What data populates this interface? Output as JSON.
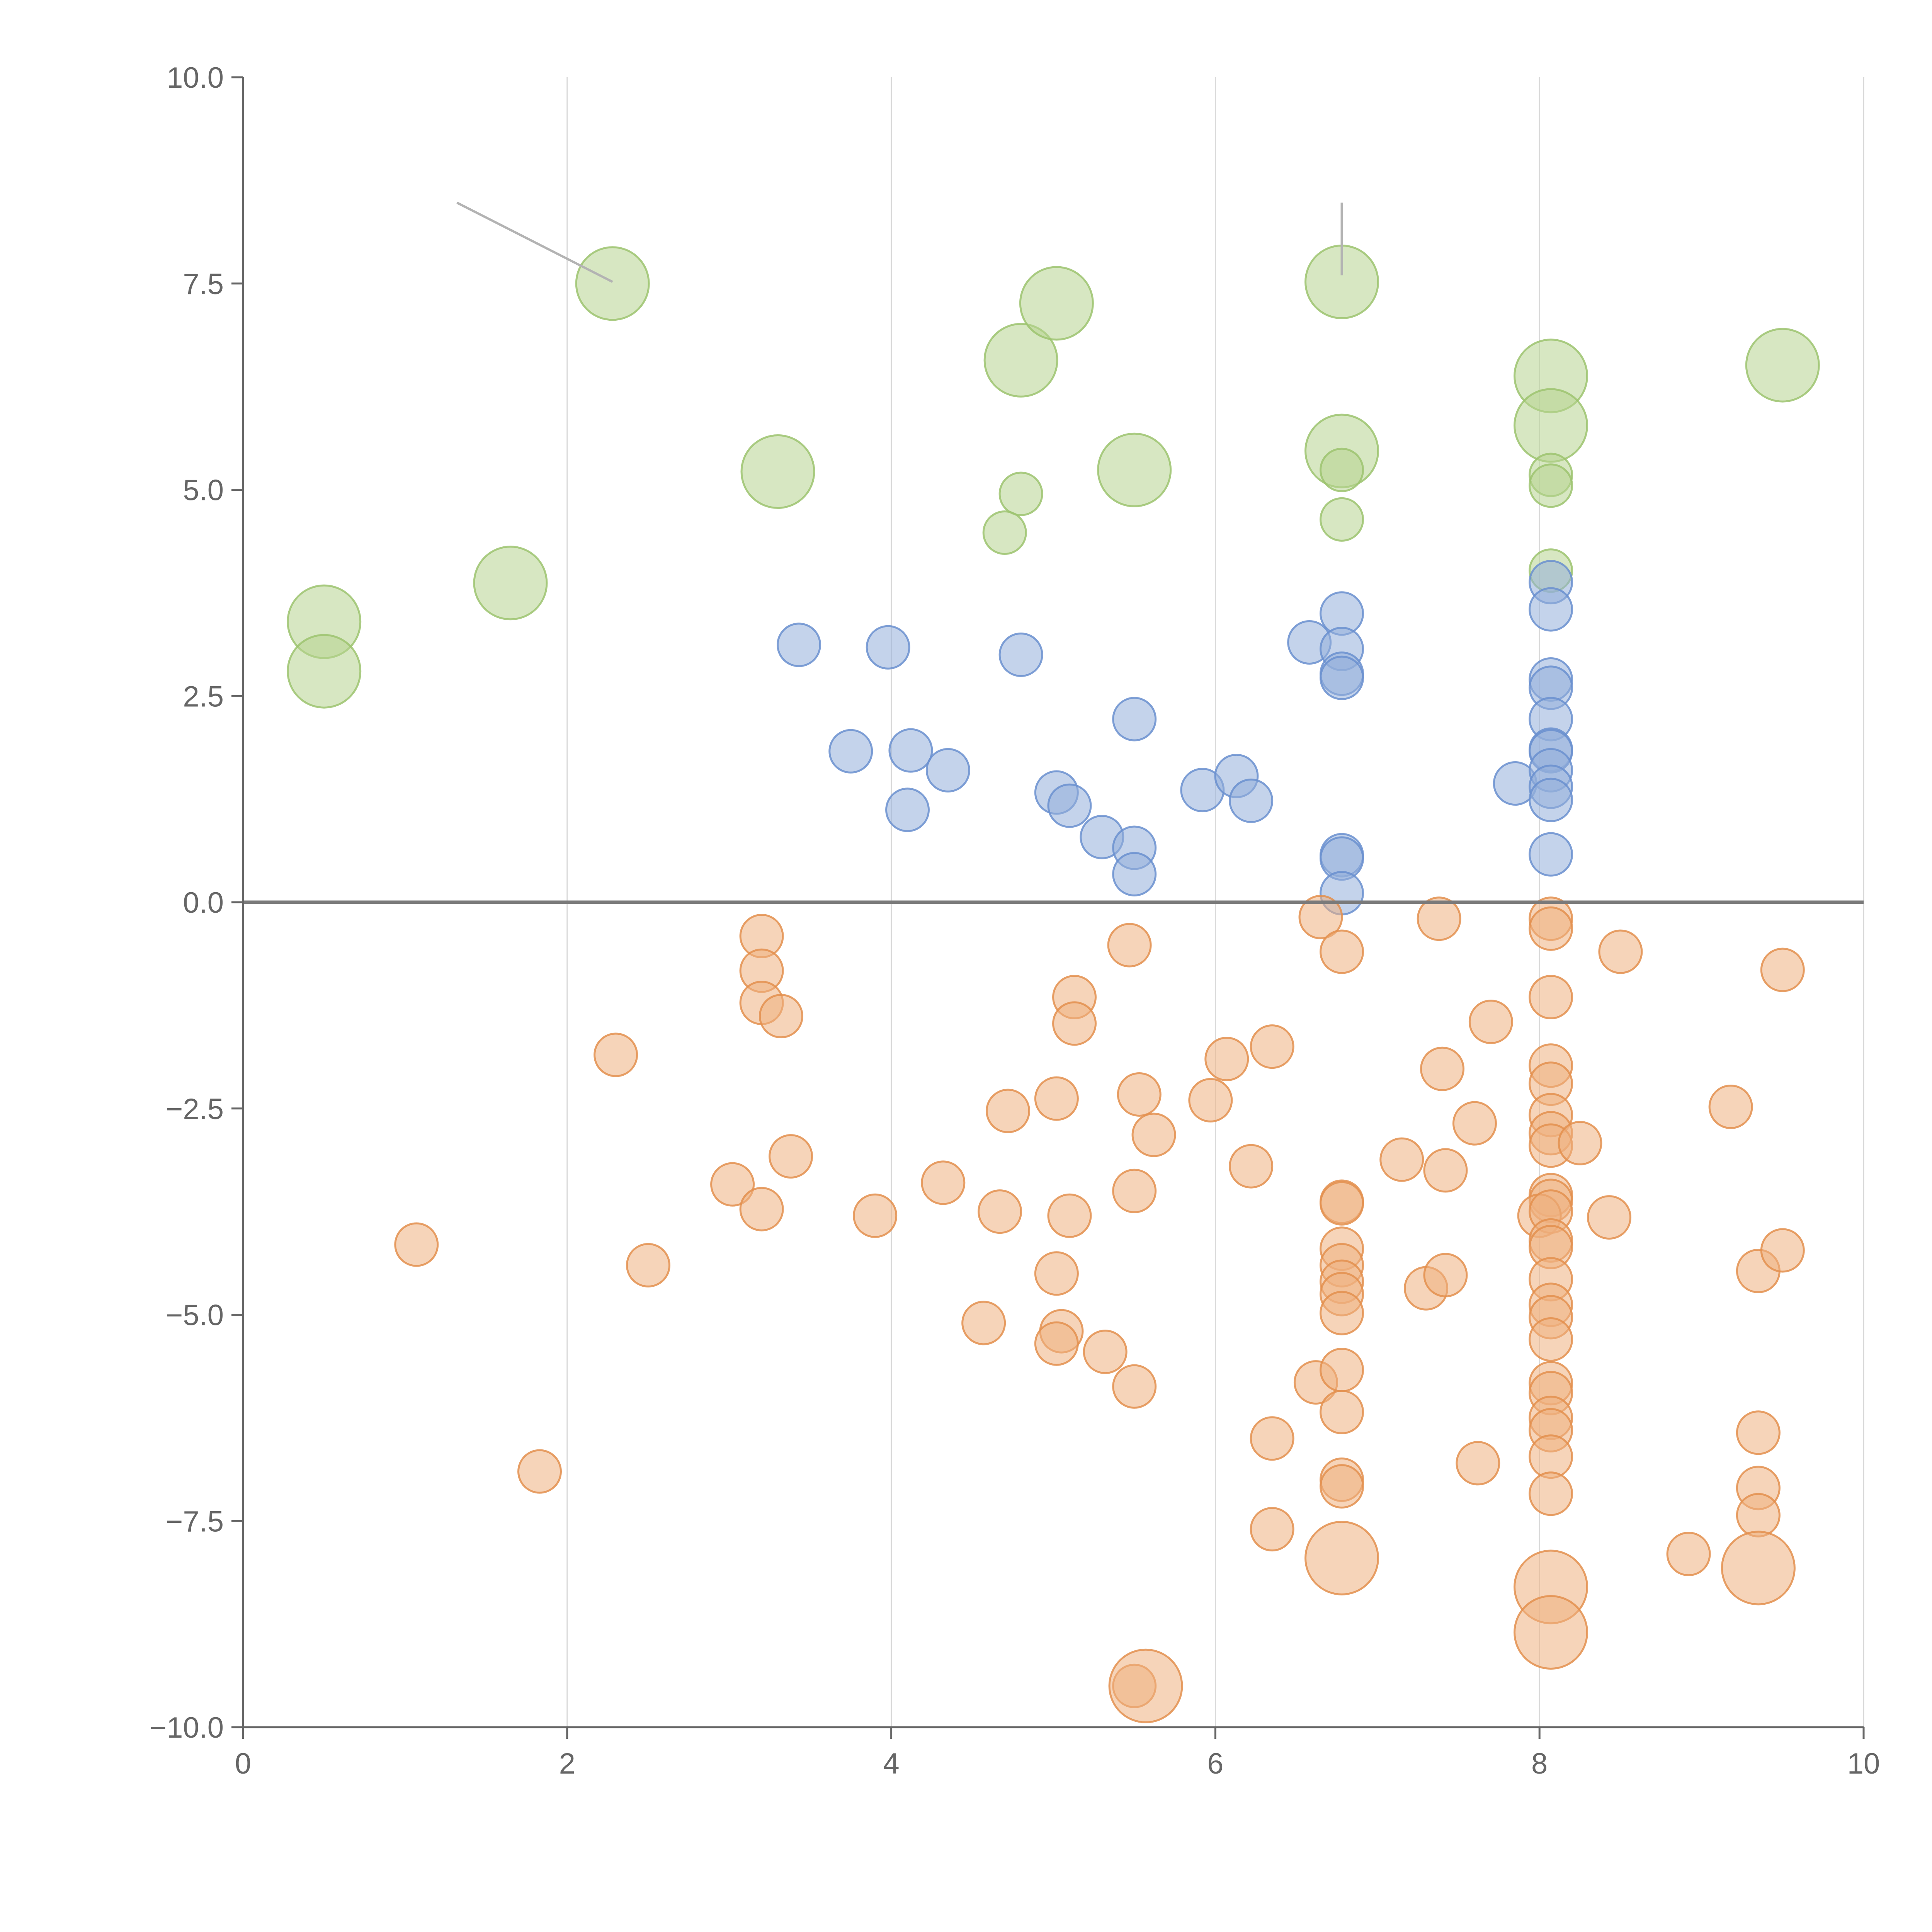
{
  "chart_data": {
    "type": "scatter",
    "title": "",
    "xlabel": "",
    "ylabel": "",
    "xlim": [
      0,
      10
    ],
    "ylim": [
      -10,
      10
    ],
    "grid": {
      "x": true,
      "y": false
    },
    "x_ticks": [
      0,
      2,
      4,
      6,
      8,
      10
    ],
    "y_ticks": [
      -10.0,
      -7.5,
      -5.0,
      -2.5,
      0.0,
      2.5,
      5.0,
      7.5,
      10.0
    ],
    "x_tick_labels": [
      "0",
      "2",
      "4",
      "6",
      "8",
      "10"
    ],
    "y_tick_labels": [
      "−10.0",
      "−7.5",
      "−5.0",
      "−2.5",
      "0.0",
      "2.5",
      "5.0",
      "7.5",
      "10.0"
    ],
    "reference_line": {
      "y": 0
    },
    "colors": {
      "green_fill": "#b7d48f",
      "green_stroke": "#9cc36f",
      "blue_fill": "#93aedb",
      "blue_stroke": "#6a8fcf",
      "orange_fill": "#efb07f",
      "orange_stroke": "#e38f4d"
    },
    "series": [
      {
        "name": "green",
        "fill": "#b7d48f",
        "stroke": "#9cc36f",
        "points": [
          [
            0.5,
            3.4,
            2
          ],
          [
            0.5,
            2.8,
            2
          ],
          [
            1.65,
            3.87,
            2
          ],
          [
            2.28,
            7.5,
            2
          ],
          [
            3.3,
            5.22,
            2
          ],
          [
            4.8,
            6.57,
            2
          ],
          [
            5.02,
            7.26,
            2
          ],
          [
            5.5,
            5.24,
            2
          ],
          [
            6.78,
            7.52,
            2
          ],
          [
            6.78,
            5.47,
            2
          ],
          [
            8.07,
            6.38,
            2
          ],
          [
            8.07,
            5.78,
            2
          ],
          [
            9.5,
            6.51,
            2
          ],
          [
            4.8,
            4.95,
            1
          ],
          [
            4.7,
            4.48,
            1
          ],
          [
            6.78,
            5.24,
            1
          ],
          [
            6.78,
            4.64,
            1
          ],
          [
            8.07,
            5.18,
            1
          ],
          [
            8.07,
            5.05,
            1
          ],
          [
            8.07,
            4.02,
            1
          ]
        ]
      },
      {
        "name": "blue",
        "fill": "#93aedb",
        "stroke": "#6a8fcf",
        "points": [
          [
            3.43,
            3.12,
            1
          ],
          [
            3.98,
            3.09,
            1
          ],
          [
            4.8,
            3.0,
            1
          ],
          [
            3.75,
            1.83,
            1
          ],
          [
            4.12,
            1.84,
            1
          ],
          [
            4.1,
            1.12,
            1
          ],
          [
            4.35,
            1.6,
            1
          ],
          [
            5.5,
            2.22,
            1
          ],
          [
            5.02,
            1.33,
            1
          ],
          [
            5.1,
            1.17,
            1
          ],
          [
            5.3,
            0.79,
            1
          ],
          [
            5.5,
            0.66,
            1
          ],
          [
            5.5,
            0.34,
            1
          ],
          [
            5.92,
            1.36,
            1
          ],
          [
            6.13,
            1.53,
            1
          ],
          [
            6.22,
            1.23,
            1
          ],
          [
            6.58,
            3.15,
            1
          ],
          [
            6.78,
            3.5,
            1
          ],
          [
            6.78,
            3.07,
            1
          ],
          [
            6.78,
            2.77,
            1
          ],
          [
            6.78,
            2.72,
            1
          ],
          [
            6.78,
            0.57,
            1
          ],
          [
            6.78,
            0.53,
            1
          ],
          [
            6.78,
            0.11,
            1
          ],
          [
            7.85,
            1.44,
            1
          ],
          [
            8.07,
            3.88,
            1
          ],
          [
            8.07,
            3.55,
            1
          ],
          [
            8.07,
            2.7,
            1
          ],
          [
            8.07,
            2.6,
            1
          ],
          [
            8.07,
            2.22,
            1
          ],
          [
            8.07,
            1.85,
            1
          ],
          [
            8.07,
            1.83,
            1
          ],
          [
            8.07,
            1.6,
            1
          ],
          [
            8.07,
            1.4,
            1
          ],
          [
            8.07,
            1.24,
            1
          ],
          [
            8.07,
            0.58,
            1
          ]
        ]
      },
      {
        "name": "orange",
        "fill": "#efb07f",
        "stroke": "#e38f4d",
        "points": [
          [
            1.07,
            -4.15,
            1
          ],
          [
            1.83,
            -6.9,
            1
          ],
          [
            2.3,
            -1.85,
            1
          ],
          [
            2.5,
            -4.4,
            1
          ],
          [
            3.2,
            -0.41,
            1
          ],
          [
            3.2,
            -0.83,
            1
          ],
          [
            3.2,
            -1.22,
            1
          ],
          [
            3.32,
            -1.38,
            1
          ],
          [
            3.02,
            -3.42,
            1
          ],
          [
            3.2,
            -3.72,
            1
          ],
          [
            3.38,
            -3.08,
            1
          ],
          [
            3.9,
            -3.8,
            1
          ],
          [
            4.32,
            -3.4,
            1
          ],
          [
            4.57,
            -5.1,
            1
          ],
          [
            4.67,
            -3.75,
            1
          ],
          [
            4.72,
            -2.53,
            1
          ],
          [
            5.02,
            -2.38,
            1
          ],
          [
            5.13,
            -1.15,
            1
          ],
          [
            5.13,
            -1.47,
            1
          ],
          [
            5.1,
            -3.8,
            1
          ],
          [
            5.02,
            -4.5,
            1
          ],
          [
            5.05,
            -5.2,
            1
          ],
          [
            5.02,
            -5.35,
            1
          ],
          [
            5.32,
            -5.45,
            1
          ],
          [
            5.47,
            -0.52,
            1
          ],
          [
            5.53,
            -2.33,
            1
          ],
          [
            5.5,
            -3.5,
            1
          ],
          [
            5.62,
            -2.82,
            1
          ],
          [
            5.5,
            -5.87,
            1
          ],
          [
            5.97,
            -2.4,
            1
          ],
          [
            6.07,
            -1.9,
            1
          ],
          [
            6.22,
            -3.2,
            1
          ],
          [
            6.35,
            -1.75,
            1
          ],
          [
            6.35,
            -6.5,
            1
          ],
          [
            6.35,
            -7.6,
            1
          ],
          [
            6.62,
            -5.82,
            1
          ],
          [
            6.65,
            -0.18,
            1
          ],
          [
            6.78,
            -0.6,
            1
          ],
          [
            6.78,
            -3.63,
            1
          ],
          [
            6.78,
            -3.65,
            1
          ],
          [
            6.78,
            -4.2,
            1
          ],
          [
            6.78,
            -4.4,
            1
          ],
          [
            6.78,
            -4.6,
            1
          ],
          [
            6.78,
            -4.75,
            1
          ],
          [
            6.78,
            -4.98,
            1
          ],
          [
            6.78,
            -5.67,
            1
          ],
          [
            6.78,
            -6.18,
            1
          ],
          [
            6.78,
            -7.0,
            1
          ],
          [
            6.78,
            -7.08,
            1
          ],
          [
            7.15,
            -3.12,
            1
          ],
          [
            7.3,
            -4.68,
            1
          ],
          [
            7.38,
            -0.2,
            1
          ],
          [
            7.4,
            -2.02,
            1
          ],
          [
            7.42,
            -4.52,
            1
          ],
          [
            7.42,
            -3.25,
            1
          ],
          [
            7.6,
            -2.68,
            1
          ],
          [
            7.62,
            -6.8,
            1
          ],
          [
            7.7,
            -1.45,
            1
          ],
          [
            8.07,
            -0.2,
            1
          ],
          [
            8.07,
            -0.32,
            1
          ],
          [
            8.07,
            -1.15,
            1
          ],
          [
            8.07,
            -1.98,
            1
          ],
          [
            8.07,
            -2.2,
            1
          ],
          [
            8.07,
            -2.58,
            1
          ],
          [
            8.07,
            -2.8,
            1
          ],
          [
            8.07,
            -2.95,
            1
          ],
          [
            8.25,
            -2.92,
            1
          ],
          [
            8.07,
            -3.55,
            1
          ],
          [
            8.07,
            -3.62,
            1
          ],
          [
            8.0,
            -3.8,
            1
          ],
          [
            8.07,
            -3.75,
            1
          ],
          [
            8.07,
            -4.1,
            1
          ],
          [
            8.07,
            -4.18,
            1
          ],
          [
            8.07,
            -4.57,
            1
          ],
          [
            8.07,
            -4.88,
            1
          ],
          [
            8.07,
            -5.03,
            1
          ],
          [
            8.07,
            -5.3,
            1
          ],
          [
            8.07,
            -5.83,
            1
          ],
          [
            8.07,
            -5.95,
            1
          ],
          [
            8.07,
            -6.25,
            1
          ],
          [
            8.07,
            -6.4,
            1
          ],
          [
            8.07,
            -6.72,
            1
          ],
          [
            8.07,
            -7.17,
            1
          ],
          [
            8.43,
            -3.82,
            1
          ],
          [
            8.5,
            -0.6,
            1
          ],
          [
            8.92,
            -7.9,
            1
          ],
          [
            9.18,
            -2.48,
            1
          ],
          [
            9.35,
            -4.47,
            1
          ],
          [
            9.35,
            -6.43,
            1
          ],
          [
            9.35,
            -7.1,
            1
          ],
          [
            9.35,
            -7.43,
            1
          ],
          [
            9.5,
            -0.82,
            1
          ],
          [
            9.5,
            -4.22,
            1
          ],
          [
            5.5,
            -9.5,
            1
          ],
          [
            6.78,
            -7.95,
            2
          ],
          [
            8.07,
            -8.3,
            2
          ],
          [
            8.07,
            -8.85,
            2
          ],
          [
            9.35,
            -8.07,
            2
          ],
          [
            5.57,
            -9.5,
            2
          ]
        ]
      }
    ]
  }
}
